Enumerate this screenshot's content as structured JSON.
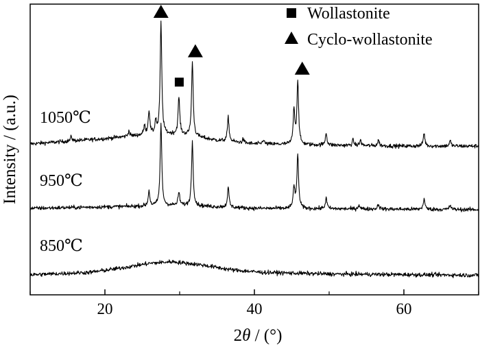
{
  "chart_data": {
    "type": "line",
    "title": "",
    "xlabel_prefix": "2",
    "xlabel_var": "θ",
    "xlabel_unit": " / (°)",
    "ylabel": "Intensity / (a.u.)",
    "xlim": [
      10,
      70
    ],
    "xticks": [
      20,
      40,
      60
    ],
    "xtick_labels": [
      "20",
      "40",
      "60"
    ],
    "y_ticks_shown": false,
    "grid": false,
    "legend_position": "top-right",
    "legend": [
      {
        "marker": "square",
        "label": "Wollastonite"
      },
      {
        "marker": "triangle",
        "label": "Cyclo-wollastonite"
      }
    ],
    "series": [
      {
        "name": "1050℃",
        "offset": 2.0,
        "noise": 0.045,
        "baseline": [
          [
            10,
            0.08
          ],
          [
            20,
            0.2
          ],
          [
            25,
            0.28
          ],
          [
            30,
            0.3
          ],
          [
            35,
            0.16
          ],
          [
            40,
            0.08
          ],
          [
            50,
            0.05
          ],
          [
            60,
            0.03
          ],
          [
            70,
            0.03
          ]
        ],
        "peaks": [
          [
            15.5,
            0.1
          ],
          [
            23.2,
            0.12
          ],
          [
            25.3,
            0.2
          ],
          [
            25.9,
            0.55
          ],
          [
            26.8,
            0.3
          ],
          [
            27.5,
            2.55
          ],
          [
            29.9,
            0.85
          ],
          [
            31.7,
            1.7
          ],
          [
            36.5,
            0.55
          ],
          [
            38.5,
            0.08
          ],
          [
            41.2,
            0.1
          ],
          [
            45.3,
            0.8
          ],
          [
            45.8,
            1.45
          ],
          [
            49.6,
            0.28
          ],
          [
            53.2,
            0.12
          ],
          [
            54.2,
            0.12
          ],
          [
            56.6,
            0.13
          ],
          [
            62.7,
            0.3
          ],
          [
            66.2,
            0.12
          ]
        ]
      },
      {
        "name": "950℃",
        "offset": 1.0,
        "noise": 0.045,
        "baseline": [
          [
            10,
            0.05
          ],
          [
            25,
            0.1
          ],
          [
            30,
            0.12
          ],
          [
            40,
            0.05
          ],
          [
            70,
            0.02
          ]
        ],
        "peaks": [
          [
            25.9,
            0.35
          ],
          [
            27.5,
            1.9
          ],
          [
            29.9,
            0.3
          ],
          [
            31.7,
            1.5
          ],
          [
            36.5,
            0.45
          ],
          [
            45.3,
            0.5
          ],
          [
            45.8,
            1.25
          ],
          [
            49.6,
            0.25
          ],
          [
            54.0,
            0.1
          ],
          [
            56.6,
            0.12
          ],
          [
            62.7,
            0.25
          ],
          [
            66.2,
            0.1
          ]
        ]
      },
      {
        "name": "850℃",
        "offset": 0.0,
        "noise": 0.05,
        "baseline": [
          [
            10,
            0.02
          ],
          [
            18,
            0.08
          ],
          [
            22,
            0.18
          ],
          [
            26,
            0.3
          ],
          [
            29,
            0.34
          ],
          [
            33,
            0.26
          ],
          [
            37,
            0.14
          ],
          [
            41,
            0.08
          ],
          [
            50,
            0.04
          ],
          [
            70,
            0.01
          ]
        ],
        "peaks": []
      }
    ],
    "annotations": [
      {
        "marker": "triangle",
        "x": 27.5,
        "series": "1050℃"
      },
      {
        "marker": "square",
        "x": 29.9,
        "series": "1050℃"
      },
      {
        "marker": "triangle",
        "x": 32.1,
        "series": "1050℃"
      },
      {
        "marker": "triangle",
        "x": 46.4,
        "series": "1050℃"
      }
    ]
  }
}
